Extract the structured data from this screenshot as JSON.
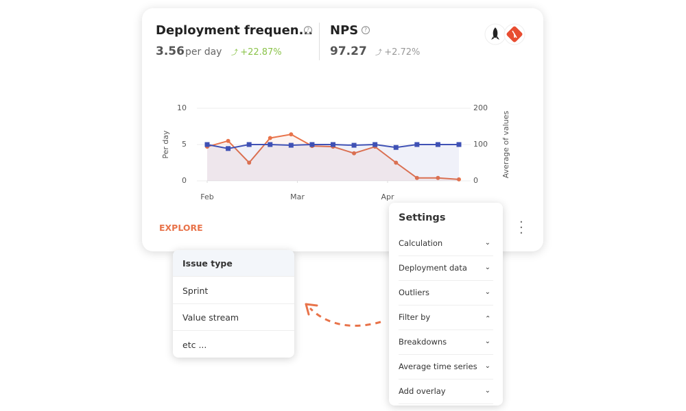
{
  "card": {
    "metrics": [
      {
        "title": "Deployment frequen...",
        "value": "3.56",
        "unit": "per day",
        "change": "+22.87%"
      },
      {
        "title": "NPS",
        "value": "97.27",
        "change": "+2.72%"
      }
    ],
    "action": "EXPLORE"
  },
  "chart_data": {
    "type": "line",
    "x": [
      0,
      1,
      2,
      3,
      4,
      5,
      6,
      7,
      8,
      9,
      10,
      11,
      12
    ],
    "xlim": [
      0,
      12
    ],
    "xticks": [
      {
        "value": 0,
        "label": "Feb"
      },
      {
        "value": 4.3,
        "label": "Mar"
      },
      {
        "value": 8.6,
        "label": "Apr"
      }
    ],
    "ylim": [
      0,
      10
    ],
    "yticks": [
      0,
      5,
      10
    ],
    "ylabel": "Per day",
    "y2lim": [
      0,
      200
    ],
    "y2ticks": [
      0,
      100,
      200
    ],
    "y2label": "Average of values",
    "grid": true,
    "series": [
      {
        "color": "#e8734a",
        "values": [
          4.7,
          5.5,
          2.5,
          5.9,
          6.4,
          4.8,
          4.7,
          3.8,
          4.7,
          2.5,
          0.4,
          0.4,
          0.2
        ]
      },
      {
        "color": "#3f51b5",
        "axis": "y2",
        "values": [
          100,
          89,
          100,
          100,
          98,
          100,
          100,
          98,
          100,
          92,
          100,
          100,
          100
        ]
      }
    ]
  },
  "settings": {
    "title": "Settings",
    "items": [
      "Calculation",
      "Deployment data",
      "Outliers",
      "Filter by",
      "Breakdowns",
      "Average time series",
      "Add overlay"
    ]
  },
  "filter_menu": {
    "items": [
      "Issue type",
      "Sprint",
      "Value stream",
      "etc ..."
    ]
  }
}
